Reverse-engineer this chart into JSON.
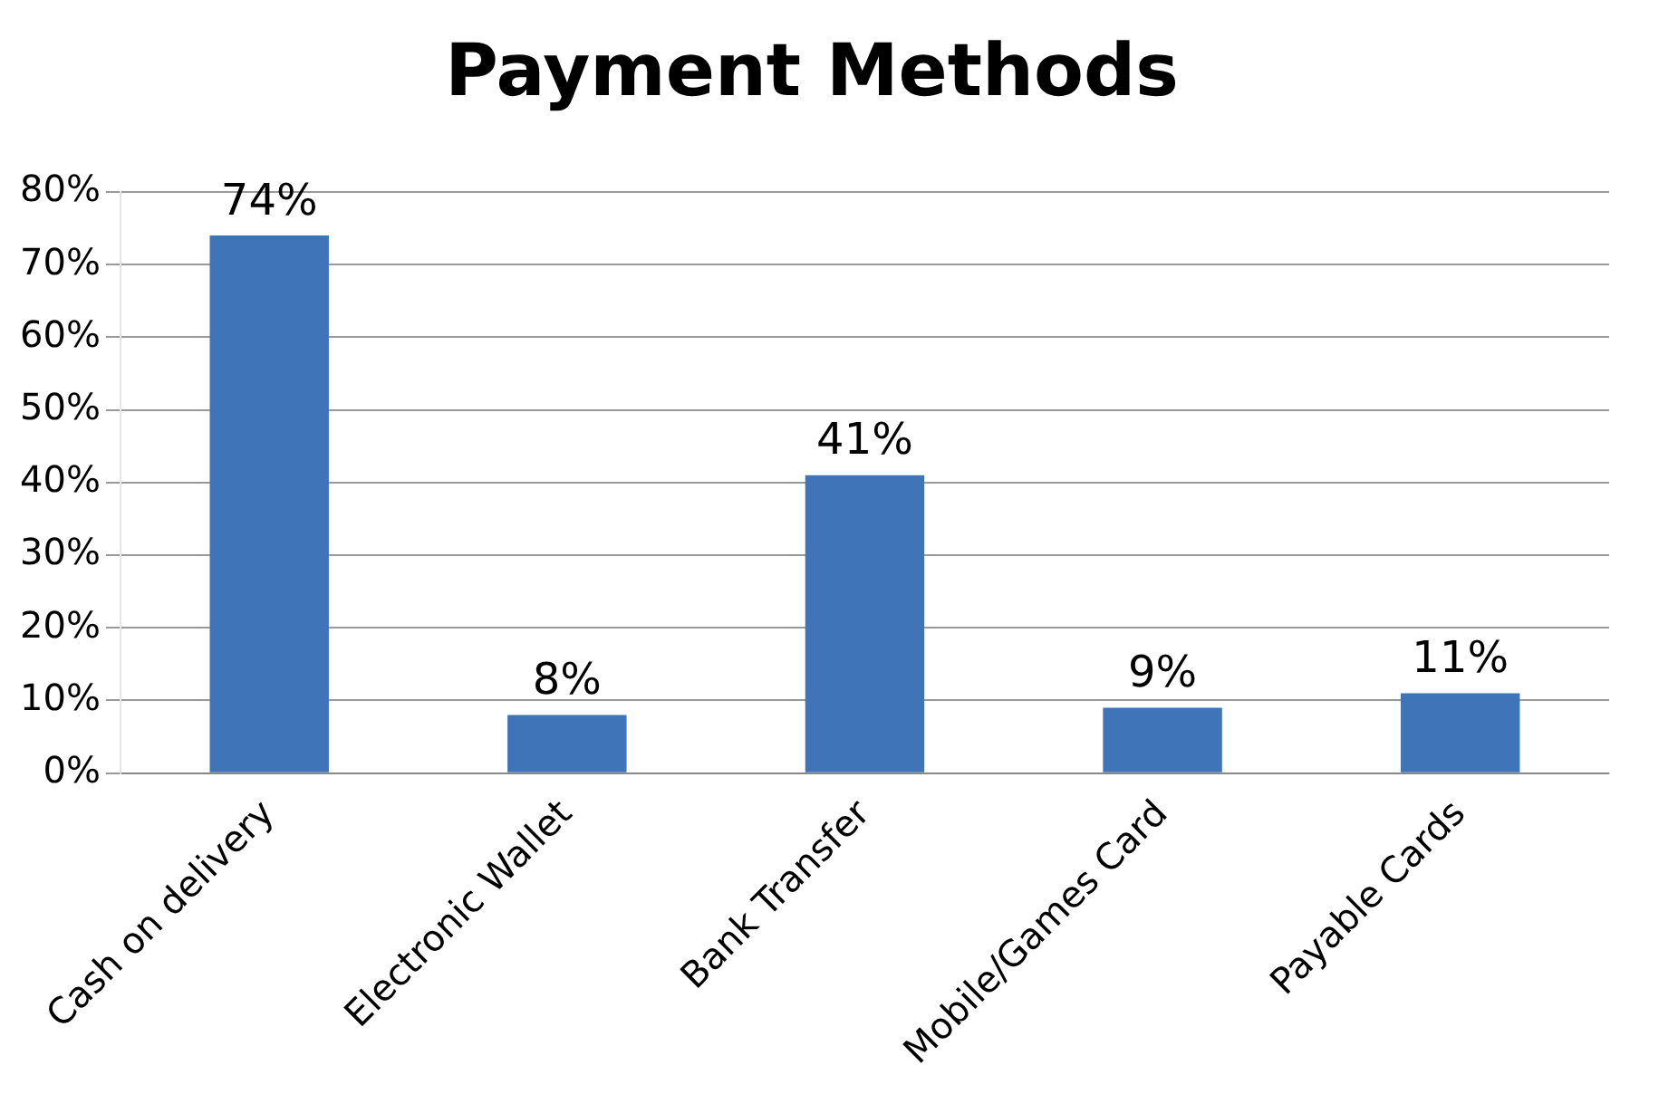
{
  "chart_data": {
    "type": "bar",
    "title": "Payment Methods",
    "categories": [
      "Cash on delivery",
      "Electronic Wallet",
      "Bank Transfer",
      "Mobile/Games Card",
      "Payable Cards"
    ],
    "values": [
      74,
      8,
      41,
      9,
      11
    ],
    "value_labels": [
      "74%",
      "8%",
      "41%",
      "9%",
      "11%"
    ],
    "color": "#3f74b8",
    "ylim": [
      0,
      80
    ],
    "yticks": [
      {
        "value": 0,
        "label": "0%"
      },
      {
        "value": 10,
        "label": "10%"
      },
      {
        "value": 20,
        "label": "20%"
      },
      {
        "value": 30,
        "label": "30%"
      },
      {
        "value": 40,
        "label": "40%"
      },
      {
        "value": 50,
        "label": "50%"
      },
      {
        "value": 60,
        "label": "60%"
      },
      {
        "value": 70,
        "label": "70%"
      },
      {
        "value": 80,
        "label": "80%"
      }
    ],
    "grid": "y",
    "legend": false
  }
}
